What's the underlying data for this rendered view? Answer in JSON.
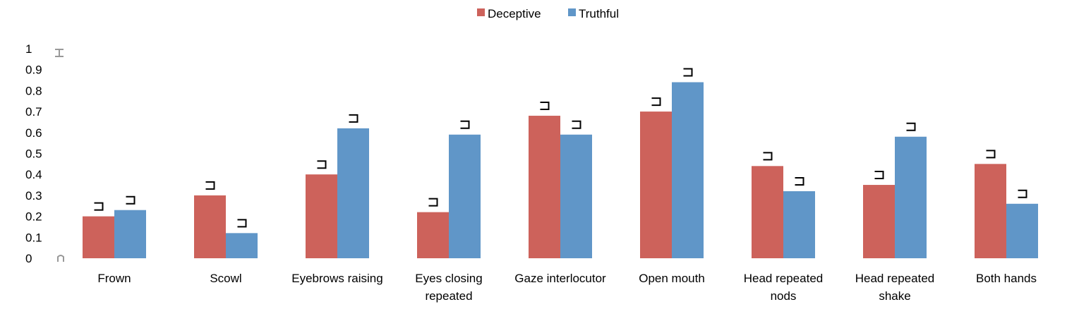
{
  "chart_data": {
    "type": "bar",
    "categories": [
      "Frown",
      "Scowl",
      "Eyebrows raising",
      "Eyes closing repeated",
      "Gaze interlocutor",
      "Open mouth",
      "Head repeated nods",
      "Head repeated shake",
      "Both hands"
    ],
    "category_lines": [
      [
        "Frown"
      ],
      [
        "Scowl"
      ],
      [
        "Eyebrows raising"
      ],
      [
        "Eyes closing",
        "repeated"
      ],
      [
        "Gaze interlocutor"
      ],
      [
        "Open mouth"
      ],
      [
        "Head repeated",
        "nods"
      ],
      [
        "Head repeated",
        "shake"
      ],
      [
        "Both hands"
      ]
    ],
    "series": [
      {
        "name": "Deceptive",
        "color": "#cd625b",
        "values": [
          0.2,
          0.3,
          0.4,
          0.22,
          0.68,
          0.7,
          0.44,
          0.35,
          0.45
        ]
      },
      {
        "name": "Truthful",
        "color": "#6096c8",
        "values": [
          0.23,
          0.12,
          0.62,
          0.59,
          0.59,
          0.84,
          0.32,
          0.58,
          0.26
        ]
      }
    ],
    "y_ticks": [
      "0",
      "0.1",
      "0.2",
      "0.3",
      "0.4",
      "0.5",
      "0.6",
      "0.7",
      "0.8",
      "0.9",
      "1"
    ],
    "ylim": [
      0,
      1
    ],
    "grid": false,
    "legend_position": "top-center",
    "error_bars": true,
    "title": "",
    "xlabel": "",
    "ylabel": ""
  }
}
